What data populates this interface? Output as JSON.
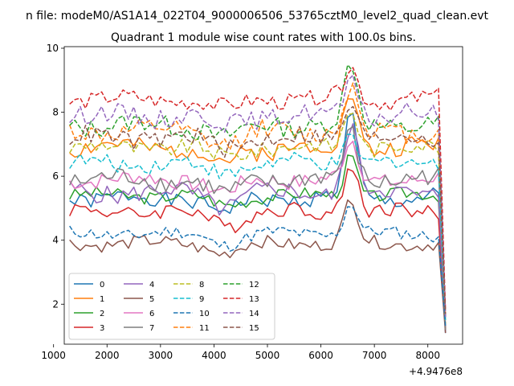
{
  "chart_data": {
    "type": "line",
    "suptitle": "n file: modeM0/AS1A14_022T04_9000006506_53765cztM0_level2_quad_clean.evt",
    "title": "Quadrant 1 module wise count rates with 100.0s bins.",
    "xlabel": "",
    "ylabel": "",
    "x_offset_label": "+4.9476e8",
    "xlim": [
      1200,
      8650
    ],
    "ylim": [
      0.75,
      10.05
    ],
    "xticks": [
      1000,
      2000,
      3000,
      4000,
      5000,
      6000,
      7000,
      8000
    ],
    "yticks": [
      2,
      4,
      6,
      8,
      10
    ],
    "grid": false,
    "legend_position": "lower-left",
    "legend_columns": 4,
    "x_start": 1300,
    "x_step": 100,
    "final_x": 8330,
    "final_values": [
      1.1,
      1.2,
      1.3,
      1.2,
      1.1,
      1.1,
      1.3,
      1.2,
      1.4,
      1.5,
      1.3,
      1.6,
      1.6,
      1.8,
      1.6,
      1.7
    ],
    "series": [
      {
        "name": "0",
        "color": "#1f77b4",
        "dash": "solid",
        "base": 5.3,
        "amp": 0.25,
        "peak": 2.6,
        "dip": 0.4
      },
      {
        "name": "1",
        "color": "#ff7f0e",
        "dash": "solid",
        "base": 6.9,
        "amp": 0.3,
        "peak": 1.8,
        "dip": 0.5
      },
      {
        "name": "2",
        "color": "#2ca02c",
        "dash": "solid",
        "base": 5.4,
        "amp": 0.2,
        "peak": 1.3,
        "dip": 0.3
      },
      {
        "name": "3",
        "color": "#d62728",
        "dash": "solid",
        "base": 4.9,
        "amp": 0.25,
        "peak": 1.6,
        "dip": 0.4
      },
      {
        "name": "4",
        "color": "#9467bd",
        "dash": "solid",
        "base": 5.5,
        "amp": 0.3,
        "peak": 2.2,
        "dip": 0.4
      },
      {
        "name": "5",
        "color": "#8c564b",
        "dash": "solid",
        "base": 3.9,
        "amp": 0.2,
        "peak": 1.4,
        "dip": 0.3
      },
      {
        "name": "6",
        "color": "#e377c2",
        "dash": "solid",
        "base": 5.9,
        "amp": 0.25,
        "peak": 1.2,
        "dip": 0.4
      },
      {
        "name": "7",
        "color": "#7f7f7f",
        "dash": "solid",
        "base": 5.9,
        "amp": 0.3,
        "peak": 1.5,
        "dip": 0.5
      },
      {
        "name": "8",
        "color": "#bcbd22",
        "dash": "dashed",
        "base": 6.9,
        "amp": 0.25,
        "peak": 1.3,
        "dip": 0.3
      },
      {
        "name": "9",
        "color": "#17becf",
        "dash": "dashed",
        "base": 6.4,
        "amp": 0.25,
        "peak": 0.9,
        "dip": 0.3
      },
      {
        "name": "10",
        "color": "#1f77b4",
        "dash": "dashed",
        "base": 4.2,
        "amp": 0.2,
        "peak": 1.0,
        "dip": 0.3
      },
      {
        "name": "11",
        "color": "#ff7f0e",
        "dash": "dashed",
        "base": 7.4,
        "amp": 0.3,
        "peak": 1.4,
        "dip": 0.4
      },
      {
        "name": "12",
        "color": "#2ca02c",
        "dash": "dashed",
        "base": 7.6,
        "amp": 0.3,
        "peak": 1.9,
        "dip": 0.4
      },
      {
        "name": "13",
        "color": "#d62728",
        "dash": "dashed",
        "base": 8.4,
        "amp": 0.25,
        "peak": 1.0,
        "dip": 0.3
      },
      {
        "name": "14",
        "color": "#9467bd",
        "dash": "dashed",
        "base": 7.9,
        "amp": 0.3,
        "peak": 1.1,
        "dip": 0.3
      },
      {
        "name": "15",
        "color": "#8c564b",
        "dash": "dashed",
        "base": 7.2,
        "amp": 0.3,
        "peak": 1.2,
        "dip": 0.3
      }
    ]
  }
}
